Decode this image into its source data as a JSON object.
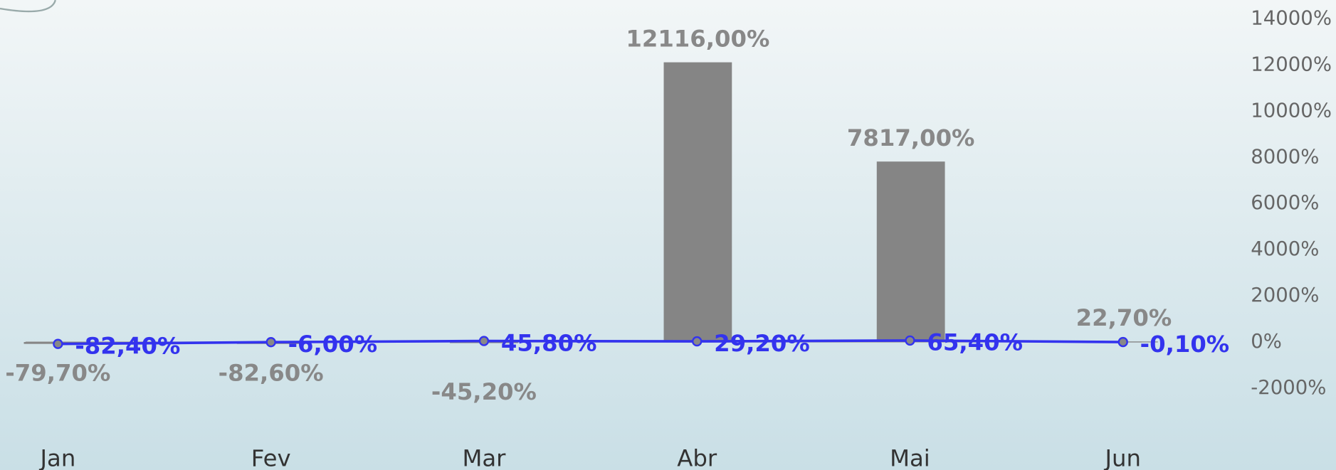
{
  "chart_data": {
    "type": "bar_line",
    "categories": [
      "Jan",
      "Fev",
      "Mar",
      "Abr",
      "Mai",
      "Jun"
    ],
    "series": [
      {
        "type": "bar",
        "color": "#858585",
        "values": [
          -79.7,
          -82.6,
          -45.2,
          12116,
          7817,
          22.7
        ],
        "value_labels": [
          "-79,70%",
          "-82,60%",
          "-45,20%",
          "12116,00%",
          "7817,00%",
          "22,70%"
        ]
      },
      {
        "type": "line",
        "color": "#3333ee",
        "values": [
          -82.4,
          -6,
          45.8,
          29.2,
          65.4,
          -0.1
        ],
        "value_labels": [
          "-82,40%",
          "-6,00%",
          "45,80%",
          "29,20%",
          "65,40%",
          "-0,10%"
        ]
      }
    ],
    "ylim": [
      -2000,
      14000
    ],
    "yticks": [
      {
        "value": -2000,
        "label": "-2000%"
      },
      {
        "value": 0,
        "label": "0%"
      },
      {
        "value": 2000,
        "label": "2000%"
      },
      {
        "value": 4000,
        "label": "4000%"
      },
      {
        "value": 6000,
        "label": "6000%"
      },
      {
        "value": 8000,
        "label": "8000%"
      },
      {
        "value": 10000,
        "label": "10000%"
      },
      {
        "value": 12000,
        "label": "12000%"
      },
      {
        "value": 14000,
        "label": "14000%"
      }
    ]
  }
}
